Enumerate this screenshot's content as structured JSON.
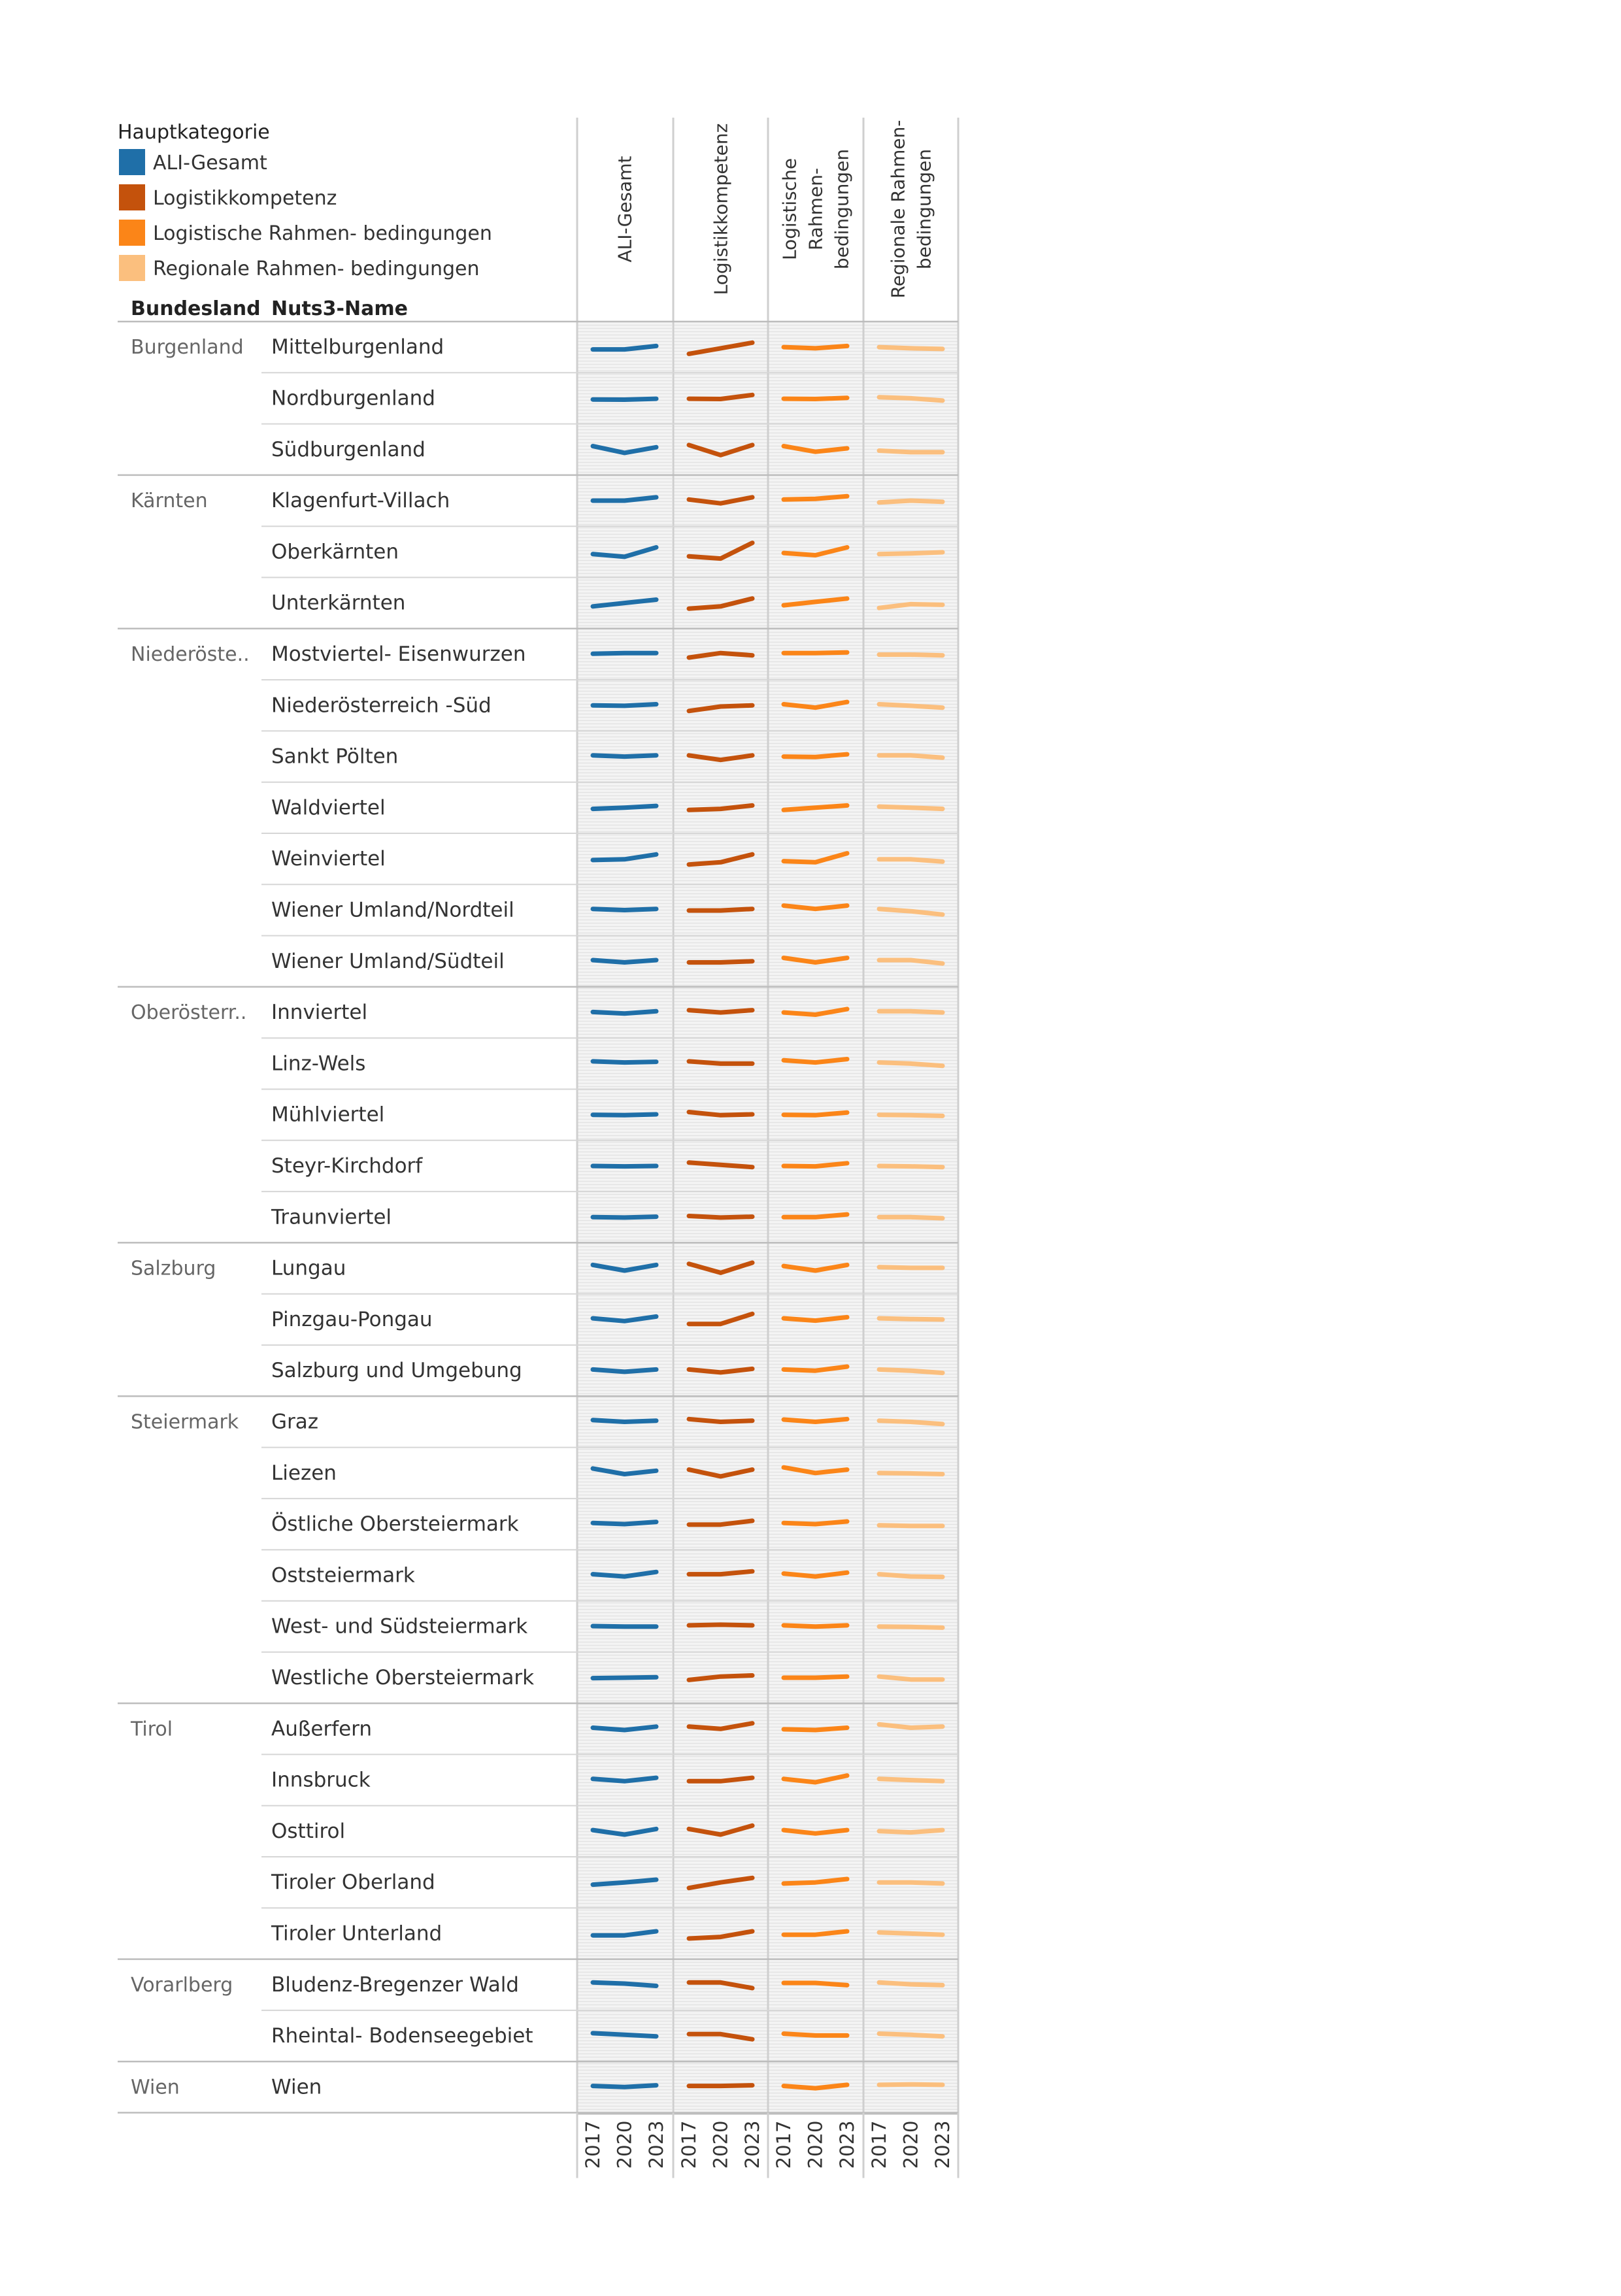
{
  "legend": {
    "title": "Hauptkategorie",
    "items": [
      {
        "label": "ALI-Gesamt",
        "color": "#1f6fa8"
      },
      {
        "label": "Logistikkompetenz",
        "color": "#c4520c"
      },
      {
        "label": "Logistische Rahmen- bedingungen",
        "color": "#fb8518"
      },
      {
        "label": "Regionale Rahmen- bedingungen",
        "color": "#fbbf7e"
      }
    ]
  },
  "row_headers": {
    "bundesland": "Bundesland",
    "nuts3": "Nuts3-Name"
  },
  "column_headers": [
    {
      "lines": [
        "ALI-Gesamt"
      ]
    },
    {
      "lines": [
        "Logistikkompetenz"
      ]
    },
    {
      "lines": [
        "Logistische",
        "Rahmen-",
        "bedingungen"
      ]
    },
    {
      "lines": [
        "Regionale Rahmen-",
        "bedingungen"
      ]
    }
  ],
  "chart_data": {
    "type": "line",
    "title": "",
    "x": [
      "2017",
      "2020",
      "2023"
    ],
    "x_tick_labels": [
      "2017",
      "2020",
      "2023"
    ],
    "y_scale": "relative index 0–100 (no axis printed; values estimated from line shapes)",
    "series_order": [
      "ALI-Gesamt",
      "Logistikkompetenz",
      "Logistische Rahmen- bedingungen",
      "Regionale Rahmen- bedingungen"
    ],
    "groups": [
      {
        "bundesland": "Burgenland",
        "regions": [
          {
            "name": "Mittelburgenland",
            "values": [
              [
                40,
                40,
                55
              ],
              [
                20,
                45,
                70
              ],
              [
                50,
                45,
                55
              ],
              [
                50,
                45,
                42
              ]
            ]
          },
          {
            "name": "Nordburgenland",
            "values": [
              [
                45,
                44,
                48
              ],
              [
                48,
                47,
                65
              ],
              [
                48,
                47,
                52
              ],
              [
                55,
                50,
                40
              ]
            ]
          },
          {
            "name": "Südburgenland",
            "values": [
              [
                65,
                35,
                60
              ],
              [
                70,
                25,
                70
              ],
              [
                65,
                40,
                55
              ],
              [
                45,
                38,
                38
              ]
            ]
          }
        ]
      },
      {
        "bundesland": "Kärnten",
        "regions": [
          {
            "name": "Klagenfurt-Villach",
            "values": [
              [
                50,
                50,
                65
              ],
              [
                55,
                38,
                65
              ],
              [
                55,
                58,
                70
              ],
              [
                42,
                50,
                45
              ]
            ]
          },
          {
            "name": "Oberkärnten",
            "values": [
              [
                40,
                28,
                70
              ],
              [
                30,
                20,
                90
              ],
              [
                45,
                35,
                70
              ],
              [
                40,
                43,
                48
              ]
            ]
          },
          {
            "name": "Unterkärnten",
            "values": [
              [
                35,
                50,
                65
              ],
              [
                25,
                35,
                70
              ],
              [
                40,
                55,
                70
              ],
              [
                28,
                45,
                42
              ]
            ]
          }
        ]
      },
      {
        "bundesland": "Niederöste..",
        "regions": [
          {
            "name": "Mostviertel- Eisenwurzen",
            "values": [
              [
                52,
                55,
                55
              ],
              [
                35,
                55,
                45
              ],
              [
                55,
                55,
                58
              ],
              [
                48,
                48,
                45
              ]
            ]
          },
          {
            "name": "Niederösterreich -Süd",
            "values": [
              [
                50,
                48,
                55
              ],
              [
                25,
                45,
                50
              ],
              [
                55,
                40,
                65
              ],
              [
                55,
                48,
                40
              ]
            ]
          },
          {
            "name": "Sankt Pölten",
            "values": [
              [
                55,
                50,
                55
              ],
              [
                55,
                35,
                55
              ],
              [
                50,
                48,
                60
              ],
              [
                55,
                55,
                45
              ]
            ]
          },
          {
            "name": "Waldviertel",
            "values": [
              [
                45,
                50,
                58
              ],
              [
                40,
                45,
                60
              ],
              [
                40,
                50,
                60
              ],
              [
                55,
                50,
                45
              ]
            ]
          },
          {
            "name": "Weinviertel",
            "values": [
              [
                45,
                48,
                70
              ],
              [
                25,
                35,
                70
              ],
              [
                40,
                35,
                75
              ],
              [
                48,
                48,
                38
              ]
            ]
          },
          {
            "name": "Wiener Umland/Nordteil",
            "values": [
              [
                55,
                50,
                55
              ],
              [
                48,
                48,
                55
              ],
              [
                70,
                55,
                70
              ],
              [
                55,
                45,
                30
              ]
            ]
          },
          {
            "name": "Wiener Umland/Südteil",
            "values": [
              [
                55,
                45,
                55
              ],
              [
                45,
                45,
                50
              ],
              [
                65,
                45,
                65
              ],
              [
                55,
                55,
                40
              ]
            ]
          }
        ]
      },
      {
        "bundesland": "Oberösterr..",
        "regions": [
          {
            "name": "Innviertel",
            "values": [
              [
                52,
                45,
                55
              ],
              [
                60,
                50,
                60
              ],
              [
                50,
                40,
                65
              ],
              [
                55,
                55,
                50
              ]
            ]
          },
          {
            "name": "Linz-Wels",
            "values": [
              [
                60,
                55,
                58
              ],
              [
                60,
                50,
                50
              ],
              [
                65,
                55,
                70
              ],
              [
                55,
                50,
                40
              ]
            ]
          },
          {
            "name": "Mühlviertel",
            "values": [
              [
                50,
                48,
                52
              ],
              [
                62,
                48,
                52
              ],
              [
                50,
                48,
                60
              ],
              [
                50,
                48,
                45
              ]
            ]
          },
          {
            "name": "Steyr-Kirchdorf",
            "values": [
              [
                50,
                48,
                50
              ],
              [
                65,
                55,
                45
              ],
              [
                50,
                48,
                62
              ],
              [
                50,
                48,
                45
              ]
            ]
          },
          {
            "name": "Traunviertel",
            "values": [
              [
                50,
                48,
                52
              ],
              [
                55,
                48,
                52
              ],
              [
                50,
                50,
                62
              ],
              [
                50,
                50,
                45
              ]
            ]
          }
        ]
      },
      {
        "bundesland": "Salzburg",
        "regions": [
          {
            "name": "Lungau",
            "values": [
              [
                65,
                40,
                65
              ],
              [
                70,
                30,
                75
              ],
              [
                60,
                40,
                65
              ],
              [
                55,
                52,
                52
              ]
            ]
          },
          {
            "name": "Pinzgau-Pongau",
            "values": [
              [
                55,
                43,
                63
              ],
              [
                30,
                30,
                75
              ],
              [
                55,
                45,
                60
              ],
              [
                55,
                52,
                50
              ]
            ]
          },
          {
            "name": "Salzburg und Umgebung",
            "values": [
              [
                55,
                45,
                55
              ],
              [
                55,
                42,
                58
              ],
              [
                55,
                50,
                68
              ],
              [
                55,
                50,
                40
              ]
            ]
          }
        ]
      },
      {
        "bundesland": "Steiermark",
        "regions": [
          {
            "name": "Graz",
            "values": [
              [
                58,
                50,
                55
              ],
              [
                62,
                50,
                55
              ],
              [
                60,
                50,
                62
              ],
              [
                55,
                50,
                40
              ]
            ]
          },
          {
            "name": "Liezen",
            "values": [
              [
                70,
                45,
                60
              ],
              [
                65,
                35,
                65
              ],
              [
                75,
                50,
                65
              ],
              [
                50,
                48,
                45
              ]
            ]
          },
          {
            "name": "Östliche Obersteiermark",
            "values": [
              [
                55,
                50,
                60
              ],
              [
                48,
                48,
                65
              ],
              [
                55,
                50,
                62
              ],
              [
                45,
                42,
                42
              ]
            ]
          },
          {
            "name": "Oststeiermark",
            "values": [
              [
                55,
                45,
                65
              ],
              [
                55,
                55,
                68
              ],
              [
                58,
                45,
                62
              ],
              [
                55,
                45,
                43
              ]
            ]
          },
          {
            "name": "West- und Südsteiermark",
            "values": [
              [
                52,
                50,
                50
              ],
              [
                55,
                58,
                55
              ],
              [
                55,
                50,
                55
              ],
              [
                50,
                48,
                45
              ]
            ]
          },
          {
            "name": "Westliche Obersteiermark",
            "values": [
              [
                48,
                50,
                52
              ],
              [
                40,
                55,
                60
              ],
              [
                50,
                50,
                55
              ],
              [
                55,
                42,
                42
              ]
            ]
          }
        ]
      },
      {
        "bundesland": "Tirol",
        "regions": [
          {
            "name": "Außerfern",
            "values": [
              [
                55,
                45,
                60
              ],
              [
                60,
                50,
                75
              ],
              [
                48,
                45,
                55
              ],
              [
                70,
                55,
                60
              ]
            ]
          },
          {
            "name": "Innsbruck",
            "values": [
              [
                55,
                45,
                60
              ],
              [
                45,
                45,
                60
              ],
              [
                55,
                40,
                70
              ],
              [
                55,
                50,
                45
              ]
            ]
          },
          {
            "name": "Osttirol",
            "values": [
              [
                55,
                35,
                60
              ],
              [
                60,
                35,
                75
              ],
              [
                55,
                40,
                55
              ],
              [
                50,
                45,
                55
              ]
            ]
          },
          {
            "name": "Tiroler Oberland",
            "values": [
              [
                40,
                50,
                62
              ],
              [
                25,
                50,
                70
              ],
              [
                45,
                50,
                65
              ],
              [
                50,
                50,
                45
              ]
            ]
          },
          {
            "name": "Tiroler Unterland",
            "values": [
              [
                42,
                42,
                60
              ],
              [
                28,
                35,
                60
              ],
              [
                45,
                45,
                60
              ],
              [
                55,
                50,
                45
              ]
            ]
          }
        ]
      },
      {
        "bundesland": "Vorarlberg",
        "regions": [
          {
            "name": "Bludenz-Bregenzer Wald",
            "values": [
              [
                60,
                55,
                45
              ],
              [
                60,
                60,
                35
              ],
              [
                58,
                58,
                48
              ],
              [
                60,
                52,
                48
              ]
            ]
          },
          {
            "name": "Rheintal- Bodenseegebiet",
            "values": [
              [
                62,
                55,
                48
              ],
              [
                58,
                58,
                35
              ],
              [
                60,
                52,
                52
              ],
              [
                60,
                55,
                48
              ]
            ]
          }
        ]
      },
      {
        "bundesland": "Wien",
        "regions": [
          {
            "name": "Wien",
            "values": [
              [
                55,
                50,
                58
              ],
              [
                55,
                55,
                58
              ],
              [
                55,
                45,
                60
              ],
              [
                60,
                62,
                60
              ]
            ]
          }
        ]
      }
    ]
  }
}
